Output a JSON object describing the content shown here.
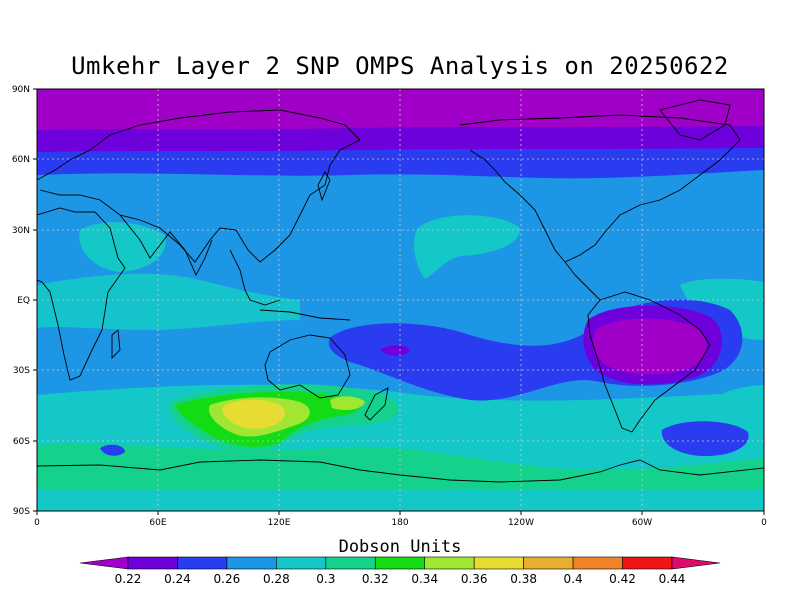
{
  "title": "Umkehr Layer 2 SNP OMPS Analysis on 20250622",
  "colorbar_title": "Dobson Units",
  "lat_ticks": [
    "90N",
    "60N",
    "30N",
    "EQ",
    "30S",
    "60S",
    "90S"
  ],
  "lon_ticks": [
    "0",
    "60E",
    "120E",
    "180",
    "120W",
    "60W",
    "0"
  ],
  "colorbar": {
    "levels": [
      "0.22",
      "0.24",
      "0.26",
      "0.28",
      "0.3",
      "0.32",
      "0.34",
      "0.36",
      "0.38",
      "0.4",
      "0.42",
      "0.44"
    ],
    "colors": [
      "#a000c8",
      "#6e00dc",
      "#2a3cf0",
      "#1e96e6",
      "#14c8c8",
      "#14d28c",
      "#14dc14",
      "#a0e632",
      "#e6dc32",
      "#e6af2d",
      "#f08228",
      "#f01414",
      "#dc0a6e"
    ]
  },
  "map": {
    "variable": "Umkehr Layer 2 ozone",
    "units": "Dobson Units",
    "projection": "cylindrical equidistant",
    "lat_range": [
      -90,
      90
    ],
    "lon_range": [
      0,
      360
    ],
    "features": {
      "high_center": {
        "label": "0.36-0.38 DU maximum",
        "location": "south of Australia, ~45S 105E"
      },
      "low_center_south_america": {
        "label": "0.22-0.24 DU minimum",
        "location": "~25S 60W"
      },
      "polar_north": {
        "label": "0.22-0.24 DU band",
        "location": "north of 65N"
      }
    }
  }
}
